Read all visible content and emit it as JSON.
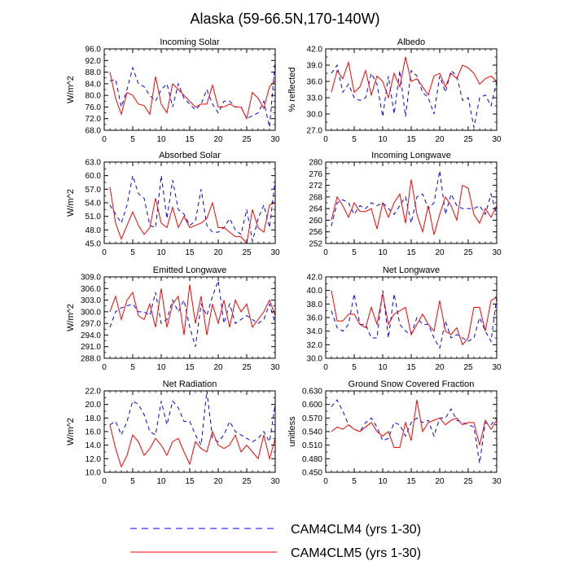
{
  "title": "Alaska (59-66.5N,170-140W)",
  "colors": {
    "series1": "#0000ff",
    "series2": "#ff0000",
    "axis": "#000000"
  },
  "legend": [
    {
      "label": "CAM4CLM4 (yrs 1-30)",
      "style": "dashed",
      "color": "#0000ff"
    },
    {
      "label": "CAM4CLM5 (yrs 1-30)",
      "style": "solid",
      "color": "#ff0000"
    }
  ],
  "chart_data": [
    {
      "type": "line",
      "title": "Incoming Solar",
      "ylabel": "W/m^2",
      "xlim": [
        0,
        30
      ],
      "ylim": [
        68,
        96
      ],
      "yticks": [
        "68.0",
        "72.0",
        "76.0",
        "80.0",
        "84.0",
        "88.0",
        "92.0",
        "96.0"
      ],
      "xticks": [
        "0",
        "5",
        "10",
        "15",
        "20",
        "25",
        "30"
      ],
      "series": [
        {
          "name": "CAM4CLM4 (yrs 1-30)",
          "values": [
            85,
            85.5,
            76,
            82,
            89.5,
            84,
            83,
            80,
            78,
            82,
            84,
            76,
            84,
            79,
            77,
            75,
            77,
            82,
            77,
            74,
            78,
            78,
            76,
            76,
            72,
            73,
            74,
            78,
            69,
            92
          ]
        },
        {
          "name": "CAM4CLM5 (yrs 1-30)",
          "values": [
            88,
            79,
            73.5,
            81,
            80,
            77,
            76.5,
            73.5,
            86.5,
            77,
            74,
            84,
            82,
            80,
            78,
            76,
            77,
            77,
            83.5,
            76,
            76,
            77,
            76,
            76,
            72,
            81,
            79,
            75.5,
            83,
            85
          ]
        }
      ]
    },
    {
      "type": "line",
      "title": "Albedo",
      "ylabel": "% reflected",
      "xlim": [
        0,
        30
      ],
      "ylim": [
        27,
        42
      ],
      "yticks": [
        "27.0",
        "30.0",
        "33.0",
        "36.0",
        "39.0",
        "42.0"
      ],
      "xticks": [
        "0",
        "5",
        "10",
        "15",
        "20",
        "25",
        "30"
      ],
      "series": [
        {
          "name": "CAM4CLM4 (yrs 1-30)",
          "values": [
            37.5,
            39,
            34,
            35.5,
            33,
            32.5,
            33,
            37.5,
            35.5,
            29.5,
            37,
            30,
            38,
            29.5,
            38,
            37,
            34,
            33,
            30,
            37,
            34,
            38,
            37,
            32.5,
            33,
            27.5,
            33,
            33.5,
            31.5,
            36
          ]
        },
        {
          "name": "CAM4CLM5 (yrs 1-30)",
          "values": [
            34,
            38,
            36.5,
            39.5,
            34,
            35,
            38,
            33.5,
            37,
            36,
            33,
            37.5,
            35,
            40.5,
            36,
            36.5,
            35,
            33.5,
            37,
            37.5,
            35,
            37.5,
            36.5,
            39,
            38.5,
            37.5,
            35.5,
            36.5,
            37,
            36
          ]
        }
      ]
    },
    {
      "type": "line",
      "title": "Absorbed Solar",
      "ylabel": "W/m^2",
      "xlim": [
        0,
        30
      ],
      "ylim": [
        45,
        63
      ],
      "yticks": [
        "45.0",
        "48.0",
        "51.0",
        "54.0",
        "57.0",
        "60.0",
        "63.0"
      ],
      "xticks": [
        "0",
        "5",
        "10",
        "15",
        "20",
        "25",
        "30"
      ],
      "series": [
        {
          "name": "CAM4CLM4 (yrs 1-30)",
          "values": [
            53.5,
            51.5,
            49.5,
            53.5,
            60,
            56,
            55,
            49,
            48.5,
            60,
            50.5,
            59,
            52.5,
            51.5,
            49,
            50,
            57,
            49,
            47.5,
            47.5,
            48.5,
            50.5,
            48,
            47,
            52.5,
            45.5,
            50.5,
            53.5,
            48.5,
            59
          ]
        },
        {
          "name": "CAM4CLM5 (yrs 1-30)",
          "values": [
            57.5,
            49.5,
            46,
            49,
            52,
            49,
            47,
            48.5,
            55,
            49.5,
            48.5,
            53,
            48.5,
            51,
            48.5,
            49,
            49.5,
            50.5,
            54,
            48.5,
            48.5,
            47.5,
            46.5,
            46.5,
            45,
            52.5,
            48.5,
            47.5,
            53.5,
            54
          ]
        }
      ]
    },
    {
      "type": "line",
      "title": "Incoming Longwave",
      "ylabel": "",
      "xlim": [
        0,
        30
      ],
      "ylim": [
        252,
        280
      ],
      "yticks": [
        "252",
        "256",
        "260",
        "264",
        "268",
        "272",
        "276",
        "280"
      ],
      "xticks": [
        "0",
        "5",
        "10",
        "15",
        "20",
        "25",
        "30"
      ],
      "series": [
        {
          "name": "CAM4CLM4 (yrs 1-30)",
          "values": [
            258,
            266,
            267,
            266,
            262,
            265,
            264,
            266,
            265,
            266,
            264,
            262,
            265,
            268,
            259,
            268,
            269,
            264,
            266,
            277,
            262,
            269,
            265,
            264,
            264,
            264,
            265,
            262,
            269,
            262
          ]
        },
        {
          "name": "CAM4CLM5 (yrs 1-30)",
          "values": [
            260,
            268,
            265,
            261,
            266,
            263,
            263,
            264,
            257,
            266,
            261,
            266,
            269,
            259,
            274,
            262,
            256,
            265,
            255,
            262,
            268,
            265,
            260,
            272,
            271,
            262,
            259,
            264,
            261,
            265
          ]
        }
      ]
    },
    {
      "type": "line",
      "title": "Emitted Longwave",
      "ylabel": "W/m^2",
      "xlim": [
        0,
        30
      ],
      "ylim": [
        288,
        309
      ],
      "yticks": [
        "288.0",
        "291.0",
        "294.0",
        "297.0",
        "300.0",
        "303.0",
        "306.0",
        "309.0"
      ],
      "xticks": [
        "0",
        "5",
        "10",
        "15",
        "20",
        "25",
        "30"
      ],
      "series": [
        {
          "name": "CAM4CLM4 (yrs 1-30)",
          "values": [
            296,
            300,
            301,
            301.5,
            302,
            300,
            300,
            299,
            305,
            297,
            298,
            303,
            300,
            303,
            296,
            291,
            302,
            299,
            304,
            308,
            297,
            302,
            297,
            298,
            299,
            298,
            297,
            298,
            302,
            297
          ]
        },
        {
          "name": "CAM4CLM5 (yrs 1-30)",
          "values": [
            300,
            304,
            298,
            303,
            305,
            299,
            298,
            302,
            296,
            306,
            296,
            302,
            304,
            294,
            307,
            297,
            304,
            294,
            302,
            297,
            303,
            296,
            303,
            300,
            302,
            296,
            298,
            300,
            303,
            299
          ]
        }
      ]
    },
    {
      "type": "line",
      "title": "Net Longwave",
      "ylabel": "",
      "xlim": [
        0,
        30
      ],
      "ylim": [
        30,
        42
      ],
      "yticks": [
        "30.0",
        "32.0",
        "34.0",
        "36.0",
        "38.0",
        "40.0",
        "42.0"
      ],
      "xticks": [
        "0",
        "5",
        "10",
        "15",
        "20",
        "25",
        "30"
      ],
      "series": [
        {
          "name": "CAM4CLM4 (yrs 1-30)",
          "values": [
            37,
            34.5,
            34,
            35,
            39.5,
            35,
            35,
            33,
            33,
            40,
            33,
            39.5,
            35,
            34,
            33.5,
            36,
            35,
            35,
            33,
            31.5,
            35.5,
            33,
            33.5,
            33,
            32.5,
            33,
            36,
            34,
            32.5,
            39
          ]
        },
        {
          "name": "CAM4CLM5 (yrs 1-30)",
          "values": [
            40,
            35.5,
            35.5,
            36.5,
            36.5,
            35,
            34.5,
            37.5,
            35,
            39.5,
            35,
            36.5,
            37,
            37.5,
            33.5,
            35,
            36.5,
            35,
            34,
            38.5,
            34,
            33.5,
            34.5,
            32,
            33,
            37.5,
            37.5,
            34,
            38.5,
            39
          ]
        }
      ]
    },
    {
      "type": "line",
      "title": "Net Radiation",
      "ylabel": "W/m^2",
      "xlim": [
        0,
        30
      ],
      "ylim": [
        10,
        22
      ],
      "yticks": [
        "10.0",
        "12.0",
        "14.0",
        "16.0",
        "18.0",
        "20.0",
        "22.0"
      ],
      "xticks": [
        "0",
        "5",
        "10",
        "15",
        "20",
        "25",
        "30"
      ],
      "series": [
        {
          "name": "CAM4CLM4 (yrs 1-30)",
          "values": [
            17,
            17.5,
            15.5,
            17.5,
            20.5,
            20,
            18.5,
            16,
            15.5,
            20.5,
            17,
            20.5,
            19.5,
            17.5,
            17.5,
            15.5,
            14,
            22,
            15,
            14.5,
            15.5,
            17.5,
            16,
            15.5,
            15,
            14.5,
            15,
            16,
            14.5,
            20
          ]
        },
        {
          "name": "CAM4CLM5 (yrs 1-30)",
          "values": [
            17,
            13.5,
            10.8,
            12.5,
            15.5,
            14.5,
            12.5,
            13.5,
            15,
            14,
            12.5,
            14.5,
            15,
            13,
            11.2,
            14.5,
            13.5,
            13,
            16,
            14,
            13.5,
            14,
            15.5,
            13,
            14,
            13,
            12,
            15.5,
            12,
            15
          ]
        }
      ]
    },
    {
      "type": "line",
      "title": "Ground Snow Covered Fraction",
      "ylabel": "unitless",
      "xlim": [
        0,
        30
      ],
      "ylim": [
        0.45,
        0.63
      ],
      "yticks": [
        "0.450",
        "0.480",
        "0.510",
        "0.540",
        "0.570",
        "0.600",
        "0.630"
      ],
      "xticks": [
        "0",
        "5",
        "10",
        "15",
        "20",
        "25",
        "30"
      ],
      "series": [
        {
          "name": "CAM4CLM4 (yrs 1-30)",
          "values": [
            0.595,
            0.61,
            0.585,
            0.555,
            0.545,
            0.54,
            0.56,
            0.57,
            0.55,
            0.52,
            0.525,
            0.56,
            0.555,
            0.53,
            0.56,
            0.57,
            0.56,
            0.565,
            0.53,
            0.57,
            0.57,
            0.59,
            0.565,
            0.56,
            0.555,
            0.55,
            0.47,
            0.56,
            0.555,
            0.57
          ]
        },
        {
          "name": "CAM4CLM5 (yrs 1-30)",
          "values": [
            0.54,
            0.55,
            0.545,
            0.555,
            0.545,
            0.54,
            0.55,
            0.56,
            0.54,
            0.53,
            0.54,
            0.505,
            0.505,
            0.56,
            0.52,
            0.61,
            0.54,
            0.56,
            0.565,
            0.57,
            0.555,
            0.565,
            0.57,
            0.555,
            0.56,
            0.56,
            0.51,
            0.565,
            0.545,
            0.565
          ]
        }
      ]
    }
  ]
}
